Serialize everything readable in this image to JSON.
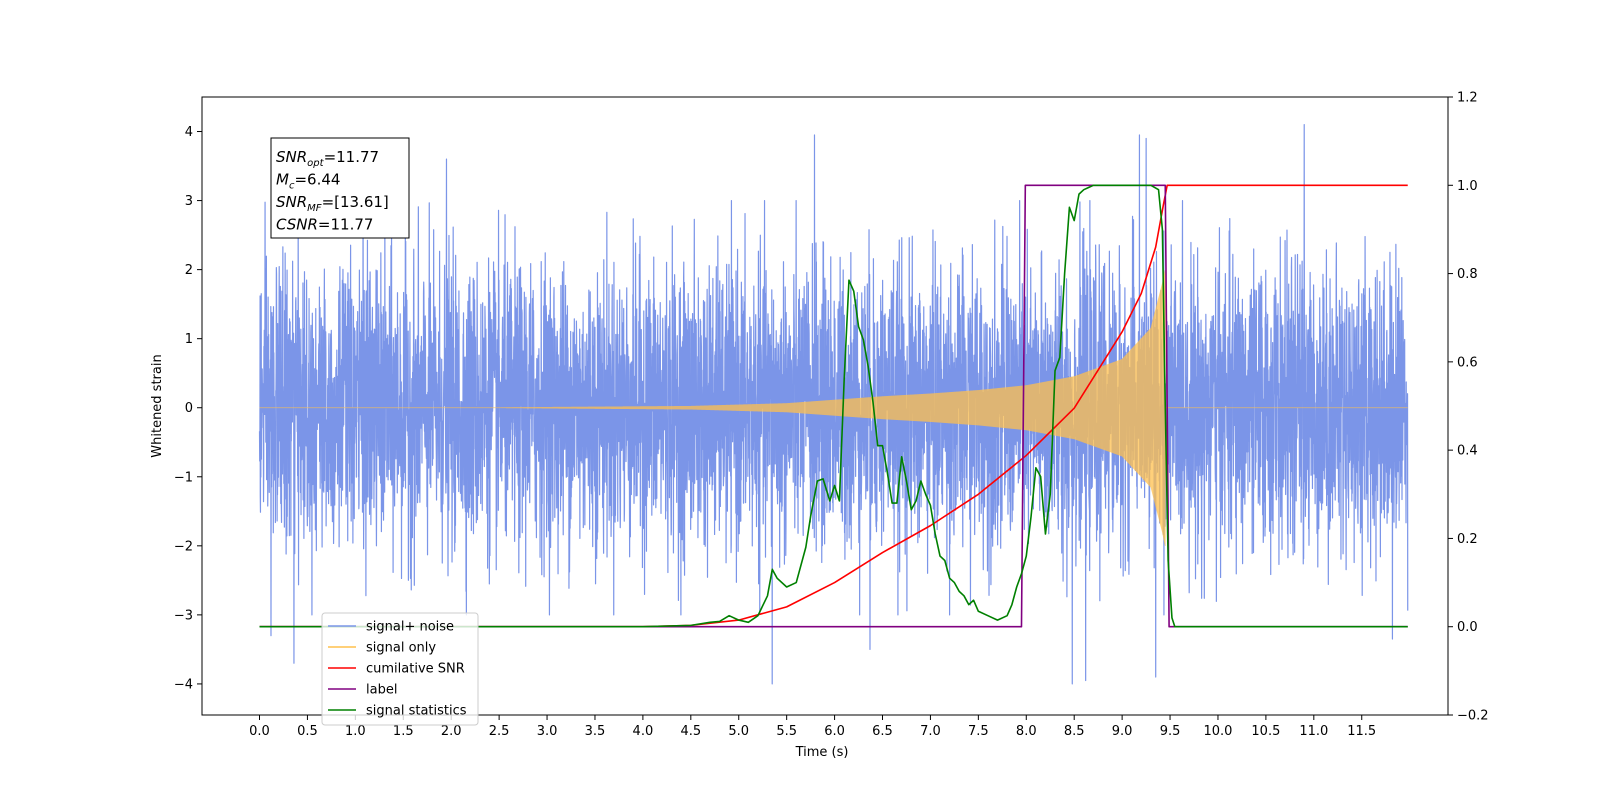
{
  "chart_data": {
    "type": "line",
    "xlabel": "Time (s)",
    "ylabel": "Whitened strain",
    "xlim": [
      -0.6,
      12.4
    ],
    "ylim": [
      -4.45,
      4.5
    ],
    "y2lim": [
      -0.2,
      1.2
    ],
    "x_ticks": [
      0.0,
      0.5,
      1.0,
      1.5,
      2.0,
      2.5,
      3.0,
      3.5,
      4.0,
      4.5,
      5.0,
      5.5,
      6.0,
      6.5,
      7.0,
      7.5,
      8.0,
      8.5,
      9.0,
      9.5,
      10.0,
      10.5,
      11.0,
      11.5
    ],
    "x_tick_labels": [
      "0.0",
      "0.5",
      "1.0",
      "1.5",
      "2.0",
      "2.5",
      "3.0",
      "3.5",
      "4.0",
      "4.5",
      "5.0",
      "5.5",
      "6.0",
      "6.5",
      "7.0",
      "7.5",
      "8.0",
      "8.5",
      "9.0",
      "9.5",
      "10.0",
      "10.5",
      "11.0",
      "11.5"
    ],
    "y_ticks": [
      -4,
      -3,
      -2,
      -1,
      0,
      1,
      2,
      3,
      4
    ],
    "y_tick_labels": [
      "−4",
      "−3",
      "−2",
      "−1",
      "0",
      "1",
      "2",
      "3",
      "4"
    ],
    "y2_ticks": [
      -0.2,
      0.0,
      0.2,
      0.4,
      0.6,
      0.8,
      1.0,
      1.2
    ],
    "y2_tick_labels": [
      "−0.2",
      "0.0",
      "0.2",
      "0.4",
      "0.6",
      "0.8",
      "1.0",
      "1.2"
    ],
    "annotation": {
      "lines": [
        {
          "main": "SNR",
          "sub": "opt",
          "rest": "=11.77"
        },
        {
          "main": "M",
          "sub": "c",
          "rest": "=6.44"
        },
        {
          "main": "SNR",
          "sub": "MF",
          "rest": "=[13.61]"
        },
        {
          "main": "CSNR",
          "sub": "",
          "rest": "=11.77"
        }
      ]
    },
    "legend": {
      "location": "lower-left",
      "entries": [
        {
          "label": "signal+ noise",
          "color": "#7b95e8"
        },
        {
          "label": "signal only",
          "color": "#ffc04d"
        },
        {
          "label": "cumilative SNR",
          "color": "#ff0000"
        },
        {
          "label": "label",
          "color": "#800080"
        },
        {
          "label": "signal statistics",
          "color": "#008000"
        }
      ]
    },
    "series": [
      {
        "name": "signal+ noise",
        "axis": "left",
        "color": "#7b95e8",
        "kind": "noise",
        "t_start": 0.0,
        "t_end": 11.98,
        "sigma": 1.0,
        "peaks": [
          [
            0.12,
            -3.3
          ],
          [
            0.36,
            -3.7
          ],
          [
            1.08,
            3.5
          ],
          [
            1.95,
            3.6
          ],
          [
            5.35,
            -4.0
          ],
          [
            5.79,
            3.95
          ],
          [
            6.37,
            -3.5
          ],
          [
            8.48,
            -4.0
          ],
          [
            8.62,
            -3.95
          ],
          [
            9.18,
            3.95
          ],
          [
            9.25,
            3.9
          ],
          [
            9.35,
            -3.9
          ],
          [
            10.9,
            4.1
          ],
          [
            11.82,
            -3.35
          ]
        ]
      },
      {
        "name": "signal only",
        "axis": "left",
        "color": "#ffc04d",
        "kind": "chirp",
        "t_start": 0.0,
        "t_merge": 9.45,
        "t_end": 11.98,
        "amplitude_at": [
          [
            4.5,
            0.02
          ],
          [
            5.5,
            0.06
          ],
          [
            6.0,
            0.11
          ],
          [
            6.5,
            0.16
          ],
          [
            7.0,
            0.2
          ],
          [
            7.5,
            0.25
          ],
          [
            8.0,
            0.32
          ],
          [
            8.5,
            0.45
          ],
          [
            9.0,
            0.7
          ],
          [
            9.3,
            1.15
          ],
          [
            9.42,
            1.8
          ],
          [
            9.45,
            2.0
          ]
        ]
      },
      {
        "name": "cumilative SNR",
        "axis": "right",
        "color": "#ff0000",
        "x": [
          0.0,
          4.0,
          4.5,
          5.0,
          5.5,
          6.0,
          6.5,
          7.0,
          7.5,
          8.0,
          8.5,
          9.0,
          9.2,
          9.35,
          9.43,
          9.47,
          11.98
        ],
        "y": [
          0.0,
          0.0,
          0.003,
          0.015,
          0.045,
          0.1,
          0.168,
          0.229,
          0.3,
          0.388,
          0.495,
          0.668,
          0.755,
          0.86,
          0.955,
          1.0,
          1.0
        ]
      },
      {
        "name": "label",
        "axis": "right",
        "color": "#800080",
        "x": [
          0.0,
          7.95,
          7.99,
          9.45,
          9.49,
          11.98
        ],
        "y": [
          0.0,
          0.0,
          1.0,
          1.0,
          0.0,
          0.0
        ]
      },
      {
        "name": "signal statistics",
        "axis": "right",
        "color": "#008000",
        "x": [
          0.0,
          3.8,
          4.0,
          4.5,
          4.7,
          4.8,
          4.9,
          5.0,
          5.1,
          5.2,
          5.3,
          5.35,
          5.4,
          5.5,
          5.6,
          5.7,
          5.75,
          5.82,
          5.88,
          5.95,
          6.0,
          6.05,
          6.1,
          6.15,
          6.2,
          6.25,
          6.3,
          6.35,
          6.4,
          6.45,
          6.5,
          6.55,
          6.6,
          6.65,
          6.7,
          6.75,
          6.8,
          6.85,
          6.9,
          6.95,
          7.0,
          7.05,
          7.1,
          7.15,
          7.2,
          7.25,
          7.3,
          7.35,
          7.4,
          7.45,
          7.5,
          7.6,
          7.7,
          7.8,
          7.85,
          7.9,
          7.95,
          8.0,
          8.05,
          8.1,
          8.15,
          8.2,
          8.25,
          8.3,
          8.35,
          8.4,
          8.45,
          8.5,
          8.55,
          8.6,
          8.65,
          8.7,
          8.8,
          8.9,
          9.0,
          9.1,
          9.2,
          9.3,
          9.38,
          9.42,
          9.45,
          9.48,
          9.52,
          9.55,
          9.6,
          11.98
        ],
        "y": [
          0.0,
          0.0,
          0.0,
          0.003,
          0.01,
          0.012,
          0.025,
          0.015,
          0.01,
          0.025,
          0.07,
          0.13,
          0.11,
          0.09,
          0.1,
          0.18,
          0.25,
          0.33,
          0.335,
          0.285,
          0.32,
          0.285,
          0.56,
          0.785,
          0.76,
          0.68,
          0.65,
          0.59,
          0.51,
          0.41,
          0.41,
          0.35,
          0.28,
          0.28,
          0.385,
          0.33,
          0.265,
          0.285,
          0.33,
          0.3,
          0.275,
          0.21,
          0.16,
          0.15,
          0.11,
          0.1,
          0.08,
          0.07,
          0.05,
          0.06,
          0.035,
          0.025,
          0.015,
          0.025,
          0.05,
          0.09,
          0.12,
          0.16,
          0.25,
          0.36,
          0.34,
          0.21,
          0.3,
          0.58,
          0.61,
          0.8,
          0.95,
          0.92,
          0.98,
          0.99,
          0.995,
          1.0,
          1.0,
          1.0,
          1.0,
          1.0,
          1.0,
          1.0,
          0.99,
          0.9,
          0.5,
          0.15,
          0.02,
          0.0,
          0.0,
          0.0
        ]
      }
    ]
  }
}
